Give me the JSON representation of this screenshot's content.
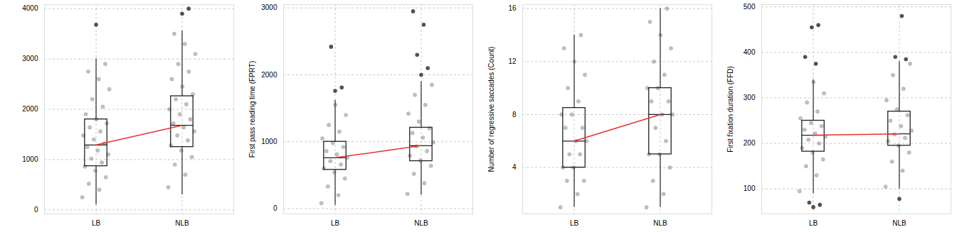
{
  "chart_data": [
    {
      "type": "box",
      "categories": [
        "LB",
        "NLB"
      ],
      "ylim": [
        -80,
        4080
      ],
      "yticks": [
        0,
        1000,
        2000,
        3000,
        4000
      ],
      "grid": true,
      "median_line_color": "#e8322b",
      "series": [
        {
          "name": "LB",
          "whisker_low": 100,
          "q1": 870,
          "median": 1290,
          "q3": 1800,
          "whisker_high": 3000,
          "outliers": [
            3680
          ],
          "points": [
            250,
            400,
            520,
            650,
            780,
            860,
            940,
            1020,
            1100,
            1180,
            1250,
            1320,
            1400,
            1480,
            1560,
            1640,
            1720,
            1800,
            1900,
            2050,
            2200,
            2400,
            2600,
            2750,
            2900
          ]
        },
        {
          "name": "NLB",
          "whisker_low": 300,
          "q1": 1250,
          "median": 1680,
          "q3": 2260,
          "whisker_high": 3560,
          "outliers": [
            3900,
            4000
          ],
          "points": [
            450,
            700,
            900,
            1050,
            1180,
            1280,
            1380,
            1480,
            1560,
            1640,
            1720,
            1800,
            1900,
            2000,
            2100,
            2200,
            2300,
            2450,
            2600,
            2750,
            2900,
            3100,
            3300,
            3500
          ]
        }
      ]
    },
    {
      "type": "box",
      "y_label": "First pass reading time (FPRT)",
      "categories": [
        "LB",
        "NLB"
      ],
      "ylim": [
        -80,
        3050
      ],
      "yticks": [
        0,
        1000,
        2000,
        3000
      ],
      "grid": true,
      "median_line_color": "#e8322b",
      "series": [
        {
          "name": "LB",
          "whisker_low": 50,
          "q1": 580,
          "median": 760,
          "q3": 1000,
          "whisker_high": 1620,
          "outliers": [
            1760,
            1810,
            2420
          ],
          "points": [
            80,
            200,
            330,
            450,
            540,
            600,
            660,
            710,
            760,
            810,
            860,
            920,
            980,
            1050,
            1150,
            1250,
            1400,
            1550
          ]
        },
        {
          "name": "NLB",
          "whisker_low": 200,
          "q1": 710,
          "median": 940,
          "q3": 1210,
          "whisker_high": 1900,
          "outliers": [
            2000,
            2100,
            2300,
            2750,
            2950
          ],
          "points": [
            220,
            380,
            520,
            640,
            720,
            790,
            860,
            930,
            990,
            1060,
            1130,
            1200,
            1300,
            1420,
            1550,
            1700,
            1850
          ]
        }
      ]
    },
    {
      "type": "box",
      "y_label": "Number of regressive saccades (Count)",
      "categories": [
        "LB",
        "NLB"
      ],
      "ylim": [
        0.5,
        16.3
      ],
      "yticks": [
        4,
        8,
        12,
        16
      ],
      "grid": true,
      "median_line_color": "#e8322b",
      "series": [
        {
          "name": "LB",
          "whisker_low": 1,
          "q1": 4,
          "median": 6,
          "q3": 8.5,
          "whisker_high": 14,
          "outliers": [],
          "points": [
            1,
            2,
            3,
            3,
            4,
            4,
            5,
            5,
            6,
            6,
            7,
            7,
            8,
            8,
            9,
            10,
            11,
            12,
            13,
            14
          ]
        },
        {
          "name": "NLB",
          "whisker_low": 1,
          "q1": 5,
          "median": 8,
          "q3": 10,
          "whisker_high": 16,
          "outliers": [],
          "points": [
            1,
            2,
            3,
            4,
            5,
            5,
            6,
            7,
            8,
            8,
            9,
            9,
            10,
            10,
            11,
            12,
            13,
            14,
            15,
            16
          ]
        }
      ]
    },
    {
      "type": "box",
      "y_label": "First fixation duration (FFD)",
      "categories": [
        "LB",
        "NLB"
      ],
      "ylim": [
        45,
        505
      ],
      "yticks": [
        100,
        200,
        300,
        400,
        500
      ],
      "grid": true,
      "median_line_color": "#e8322b",
      "series": [
        {
          "name": "LB",
          "whisker_low": 90,
          "q1": 182,
          "median": 218,
          "q3": 250,
          "whisker_high": 340,
          "outliers": [
            60,
            65,
            70,
            375,
            390,
            455,
            460
          ],
          "points": [
            95,
            130,
            150,
            165,
            180,
            190,
            200,
            208,
            215,
            222,
            230,
            238,
            245,
            255,
            270,
            290,
            310,
            335
          ]
        },
        {
          "name": "NLB",
          "whisker_low": 100,
          "q1": 195,
          "median": 221,
          "q3": 270,
          "whisker_high": 380,
          "outliers": [
            78,
            385,
            390,
            480
          ],
          "points": [
            105,
            140,
            160,
            180,
            195,
            205,
            212,
            220,
            228,
            238,
            250,
            262,
            275,
            295,
            320,
            350,
            375
          ]
        }
      ]
    }
  ]
}
